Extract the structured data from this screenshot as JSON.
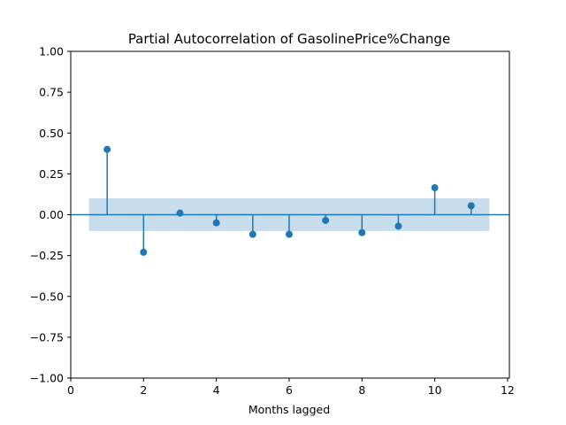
{
  "chart_data": {
    "type": "scatter",
    "title": "Partial Autocorrelation of GasolinePrice%Change",
    "xlabel": "Months lagged",
    "ylabel": "",
    "xlim": [
      0,
      12.05
    ],
    "ylim": [
      -1.0,
      1.0
    ],
    "xticks": [
      0,
      2,
      4,
      6,
      8,
      10,
      12
    ],
    "xtick_labels": [
      "0",
      "2",
      "4",
      "6",
      "8",
      "10",
      "12"
    ],
    "yticks": [
      1.0,
      0.75,
      0.5,
      0.25,
      0.0,
      -0.25,
      -0.5,
      -0.75,
      -1.0
    ],
    "ytick_labels": [
      "1.00",
      "0.75",
      "0.50",
      "0.25",
      "0.00",
      "−0.25",
      "−0.50",
      "−0.75",
      "−1.00"
    ],
    "confidence_band": {
      "x_range": [
        0.5,
        11.5
      ],
      "upper": 0.1,
      "lower": -0.1,
      "color": "#1f77b4"
    },
    "stem": {
      "lags": [
        1,
        2,
        3,
        4,
        5,
        6,
        7,
        8,
        9,
        10,
        11
      ],
      "values": [
        0.4,
        -0.23,
        0.01,
        -0.05,
        -0.12,
        -0.12,
        -0.035,
        -0.11,
        -0.07,
        0.165,
        0.055
      ]
    },
    "grid": false,
    "legend": "none",
    "color": "#1f77b4"
  }
}
